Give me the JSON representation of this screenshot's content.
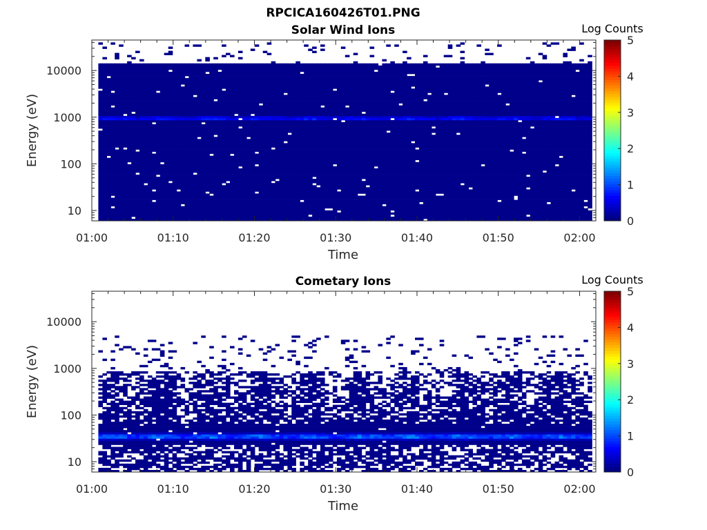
{
  "figure": {
    "title": "RPCICA160426T01.PNG"
  },
  "chart_data": [
    {
      "type": "heatmap",
      "title": "Solar Wind Ions",
      "xlabel": "Time",
      "ylabel": "Energy (eV)",
      "y_scale": "log",
      "y_range_eV": [
        6,
        45000
      ],
      "y_ticks": [
        10,
        100,
        1000,
        10000
      ],
      "y_tick_labels": [
        "10",
        "100",
        "1000",
        "10000"
      ],
      "x_range_min": [
        0,
        62
      ],
      "x_ticks": [
        0,
        10,
        20,
        30,
        40,
        50,
        60
      ],
      "x_tick_labels": [
        "01:00",
        "01:10",
        "01:20",
        "01:30",
        "01:40",
        "01:50",
        "02:00"
      ],
      "colorbar": {
        "label": "Log Counts",
        "range": [
          0,
          5
        ],
        "ticks": [
          "0",
          "1",
          "2",
          "3",
          "4",
          "5"
        ],
        "colormap": "jet"
      },
      "background_level": 0.05,
      "coverage": {
        "t_start_min": 0.8,
        "t_end_min": 61.5,
        "e_min_eV": 6,
        "e_max_eV": 14000
      },
      "peak_band": {
        "energy_eV": 900,
        "peak_log_counts": [
          0.8,
          1.2
        ]
      },
      "sparse_upper_energy_eV": [
        14000,
        40000
      ],
      "grid": false,
      "legend": "colorbar right"
    },
    {
      "type": "heatmap",
      "title": "Cometary Ions",
      "xlabel": "Time",
      "ylabel": "Energy (eV)",
      "y_scale": "log",
      "y_range_eV": [
        6,
        45000
      ],
      "y_ticks": [
        10,
        100,
        1000,
        10000
      ],
      "y_tick_labels": [
        "10",
        "100",
        "1000",
        "10000"
      ],
      "x_range_min": [
        0,
        62
      ],
      "x_ticks": [
        0,
        10,
        20,
        30,
        40,
        50,
        60
      ],
      "x_tick_labels": [
        "01:00",
        "01:10",
        "01:20",
        "01:30",
        "01:40",
        "01:50",
        "02:00"
      ],
      "colorbar": {
        "label": "Log Counts",
        "range": [
          0,
          5
        ],
        "ticks": [
          "0",
          "1",
          "2",
          "3",
          "4",
          "5"
        ],
        "colormap": "jet"
      },
      "background_level": 0.05,
      "coverage": {
        "t_start_min": 0.8,
        "t_end_min": 61.5,
        "e_min_eV": 6,
        "e_max_eV": 800
      },
      "peak_band": {
        "energy_eV": 33,
        "peak_log_counts": [
          1.3,
          1.8
        ]
      },
      "sparse_upper_energy_eV": [
        800,
        5000
      ],
      "grid": false,
      "legend": "colorbar right"
    }
  ]
}
